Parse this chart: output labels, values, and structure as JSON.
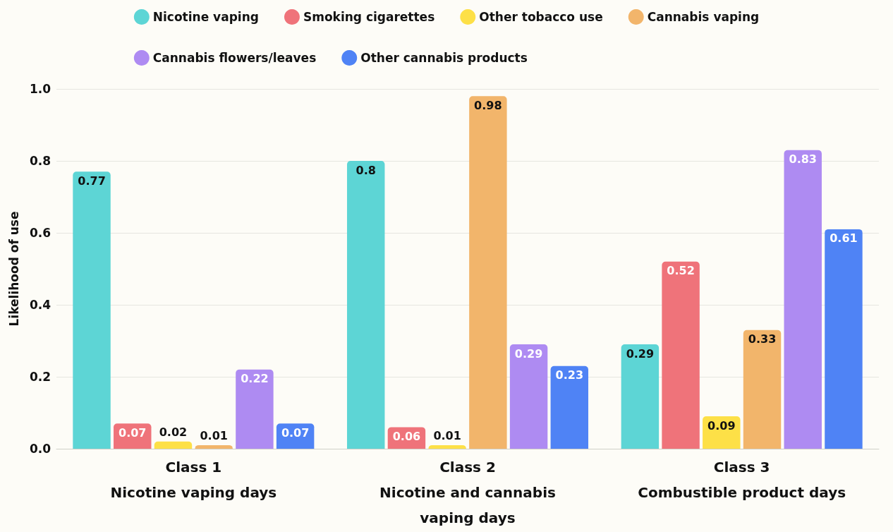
{
  "chart_data": {
    "type": "bar",
    "ylabel": "Likelihood of use",
    "categories": [
      "Class 1\nNicotine vaping days",
      "Class 2\nNicotine and cannabis\nvaping days",
      "Class 3\nCombustible product days"
    ],
    "series": [
      {
        "name": "Nicotine vaping",
        "color": "#5dd5d5",
        "values": [
          0.77,
          0.8,
          0.29
        ]
      },
      {
        "name": "Smoking cigarettes",
        "color": "#ef737a",
        "values": [
          0.07,
          0.06,
          0.52
        ]
      },
      {
        "name": "Other tobacco use",
        "color": "#fde047",
        "values": [
          0.02,
          0.01,
          0.09
        ]
      },
      {
        "name": "Cannabis vaping",
        "color": "#f2b56b",
        "values": [
          0.01,
          0.98,
          0.33
        ]
      },
      {
        "name": "Cannabis flowers/leaves",
        "color": "#ae8bf2",
        "values": [
          0.22,
          0.29,
          0.83
        ]
      },
      {
        "name": "Other cannabis products",
        "color": "#4f83f5",
        "values": [
          0.07,
          0.23,
          0.61
        ]
      }
    ],
    "ylim": [
      0,
      1
    ],
    "yticks": [
      {
        "value": 0,
        "label": "0.0"
      },
      {
        "value": 0.2,
        "label": "0.2"
      },
      {
        "value": 0.4,
        "label": "0.4"
      },
      {
        "value": 0.6,
        "label": "0.6"
      },
      {
        "value": 0.8,
        "label": "0.8"
      },
      {
        "value": 1,
        "label": "1.0"
      }
    ],
    "grid": "y",
    "legend": "top",
    "data_labels": true
  }
}
